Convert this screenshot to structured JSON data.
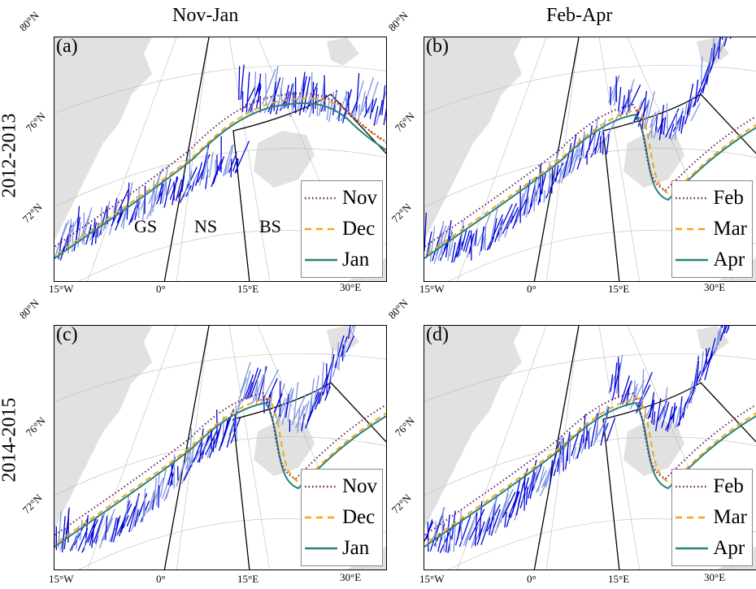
{
  "columns": [
    "Nov-Jan",
    "Feb-Apr"
  ],
  "rows": [
    "2012-2013",
    "2014-2015"
  ],
  "panels": [
    {
      "label": "(a)",
      "legend": [
        "Nov",
        "Dec",
        "Jan"
      ],
      "regions": [
        "GS",
        "NS",
        "BS"
      ]
    },
    {
      "label": "(b)",
      "legend": [
        "Feb",
        "Mar",
        "Apr"
      ],
      "regions": []
    },
    {
      "label": "(c)",
      "legend": [
        "Nov",
        "Dec",
        "Jan"
      ],
      "regions": []
    },
    {
      "label": "(d)",
      "legend": [
        "Feb",
        "Mar",
        "Apr"
      ],
      "regions": []
    }
  ],
  "lat_labels": [
    "80°N",
    "76°N",
    "72°N"
  ],
  "lon_labels": [
    "15°W",
    "0°",
    "15°E",
    "30°E"
  ],
  "colors": {
    "month1": "#6b2150",
    "month2": "#f2a516",
    "month3": "#2a8178",
    "vector_dark": "#0000d8",
    "vector_light": "#7f95e0",
    "land": "#e1e1e1"
  }
}
